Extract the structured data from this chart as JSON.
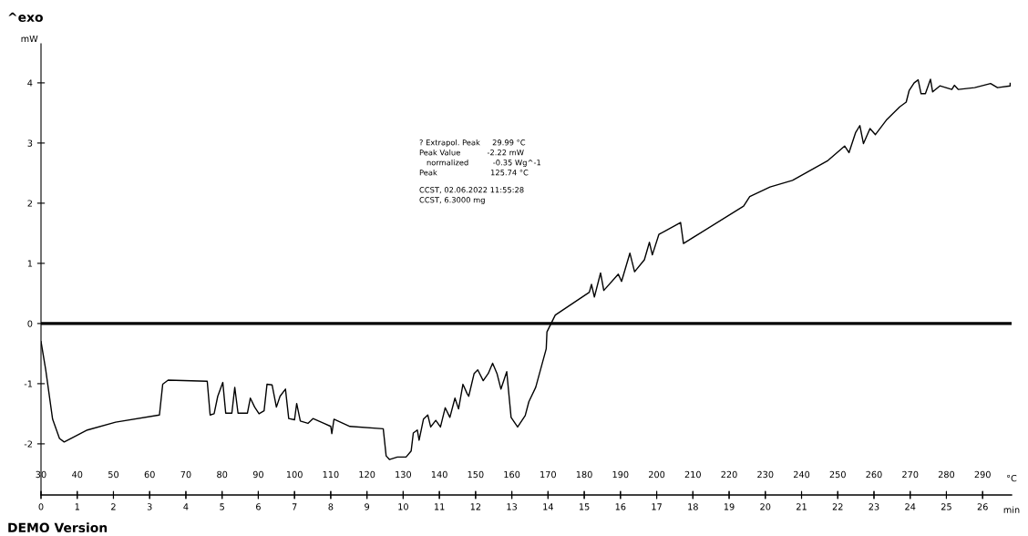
{
  "chart_data": {
    "type": "line",
    "title": "^exo",
    "xlabel": "°C",
    "ylabel": "mW",
    "x2label": "min",
    "series": [
      {
        "color": "#000000",
        "x": [
          30,
          31.3,
          33.2,
          35.1,
          36.4,
          42.8,
          50.6,
          62.7,
          63.6,
          65.1,
          75.9,
          76.7,
          77.8,
          78.8,
          80.2,
          81.0,
          82.7,
          83.5,
          84.4,
          87.0,
          87.8,
          89.0,
          90.2,
          91.6,
          92.4,
          93.8,
          95.0,
          96.0,
          97.5,
          98.4,
          100.0,
          100.6,
          101.6,
          103.7,
          105.1,
          108.1,
          110.0,
          110.3,
          110.9,
          115.3,
          124.5,
          125.3,
          126.2,
          128.4,
          130.8,
          132.2,
          132.8,
          133.9,
          134.4,
          135.6,
          136.8,
          137.6,
          139.0,
          140.3,
          141.6,
          142.9,
          144.3,
          145.3,
          146.5,
          147.7,
          148.1,
          149.6,
          150.6,
          152.1,
          153.5,
          154.7,
          155.9,
          157.0,
          158.6,
          159.8,
          161.6,
          163.7,
          164.7,
          166.6,
          169.5,
          169.7,
          172.0,
          181.4,
          182.0,
          182.8,
          184.5,
          185.4,
          189.4,
          190.3,
          192.6,
          193.9,
          196.6,
          198.0,
          198.8,
          200.6,
          206.6,
          207.4,
          224.0,
          225.7,
          231.3,
          237.5,
          247.3,
          251.9,
          253.1,
          254.9,
          256.1,
          257.1,
          258.9,
          260.4,
          263.4,
          267.1,
          268.9,
          269.7,
          271.1,
          272.2,
          273.0,
          274.2,
          275.6,
          276.2,
          278.2,
          281.5,
          282.2,
          283.3,
          287.8,
          292.2,
          294.1,
          297.6,
          297.6
        ],
        "values": [
          -0.3,
          -0.77,
          -1.59,
          -1.91,
          -1.97,
          -1.77,
          -1.64,
          -1.52,
          -1.01,
          -0.94,
          -0.96,
          -1.52,
          -1.5,
          -1.21,
          -0.98,
          -1.49,
          -1.49,
          -1.06,
          -1.49,
          -1.49,
          -1.24,
          -1.39,
          -1.5,
          -1.45,
          -1.01,
          -1.02,
          -1.39,
          -1.21,
          -1.09,
          -1.58,
          -1.6,
          -1.33,
          -1.62,
          -1.66,
          -1.58,
          -1.66,
          -1.71,
          -1.83,
          -1.59,
          -1.71,
          -1.75,
          -2.2,
          -2.26,
          -2.22,
          -2.22,
          -2.12,
          -1.82,
          -1.77,
          -1.94,
          -1.59,
          -1.52,
          -1.72,
          -1.61,
          -1.72,
          -1.4,
          -1.56,
          -1.24,
          -1.42,
          -1.01,
          -1.17,
          -1.21,
          -0.83,
          -0.77,
          -0.95,
          -0.83,
          -0.66,
          -0.83,
          -1.09,
          -0.8,
          -1.56,
          -1.72,
          -1.53,
          -1.3,
          -1.06,
          -0.42,
          -0.14,
          0.14,
          0.52,
          0.65,
          0.44,
          0.84,
          0.55,
          0.82,
          0.7,
          1.17,
          0.86,
          1.06,
          1.35,
          1.14,
          1.48,
          1.68,
          1.33,
          1.95,
          2.11,
          2.27,
          2.38,
          2.71,
          2.95,
          2.84,
          3.17,
          3.29,
          2.99,
          3.24,
          3.14,
          3.38,
          3.6,
          3.68,
          3.87,
          4.0,
          4.05,
          3.82,
          3.82,
          4.06,
          3.85,
          3.95,
          3.89,
          3.96,
          3.89,
          3.92,
          3.99,
          3.92,
          3.95,
          3.99
        ]
      }
    ],
    "xlim": [
      30,
      298
    ],
    "xticks": [
      30,
      40,
      50,
      60,
      70,
      80,
      90,
      100,
      110,
      120,
      130,
      140,
      150,
      160,
      170,
      180,
      190,
      200,
      210,
      220,
      230,
      240,
      250,
      260,
      270,
      280,
      290
    ],
    "x2lim": [
      0,
      26.8
    ],
    "x2ticks": [
      0,
      1,
      2,
      3,
      4,
      5,
      6,
      7,
      8,
      9,
      10,
      11,
      12,
      13,
      14,
      15,
      16,
      17,
      18,
      19,
      20,
      21,
      22,
      23,
      24,
      25,
      26
    ],
    "ylim": [
      -2.85,
      4.65
    ],
    "yticks": [
      -2,
      -1,
      0,
      1,
      2,
      3,
      4
    ],
    "ref_lines": [
      {
        "axis": "y",
        "value": 0,
        "color": "#000000"
      }
    ],
    "grid": false,
    "marker": "none",
    "line_style": "solid",
    "annotations": [
      "? Extrapol. Peak     29.99 °C",
      "Peak Value           -2.22 mW",
      "   normalized          -0.35 Wg^-1",
      "Peak                      125.74 °C",
      "CCST, 02.06.2022 11:55:28",
      "CCST, 6.3000 mg",
      "DEMO Version"
    ]
  }
}
